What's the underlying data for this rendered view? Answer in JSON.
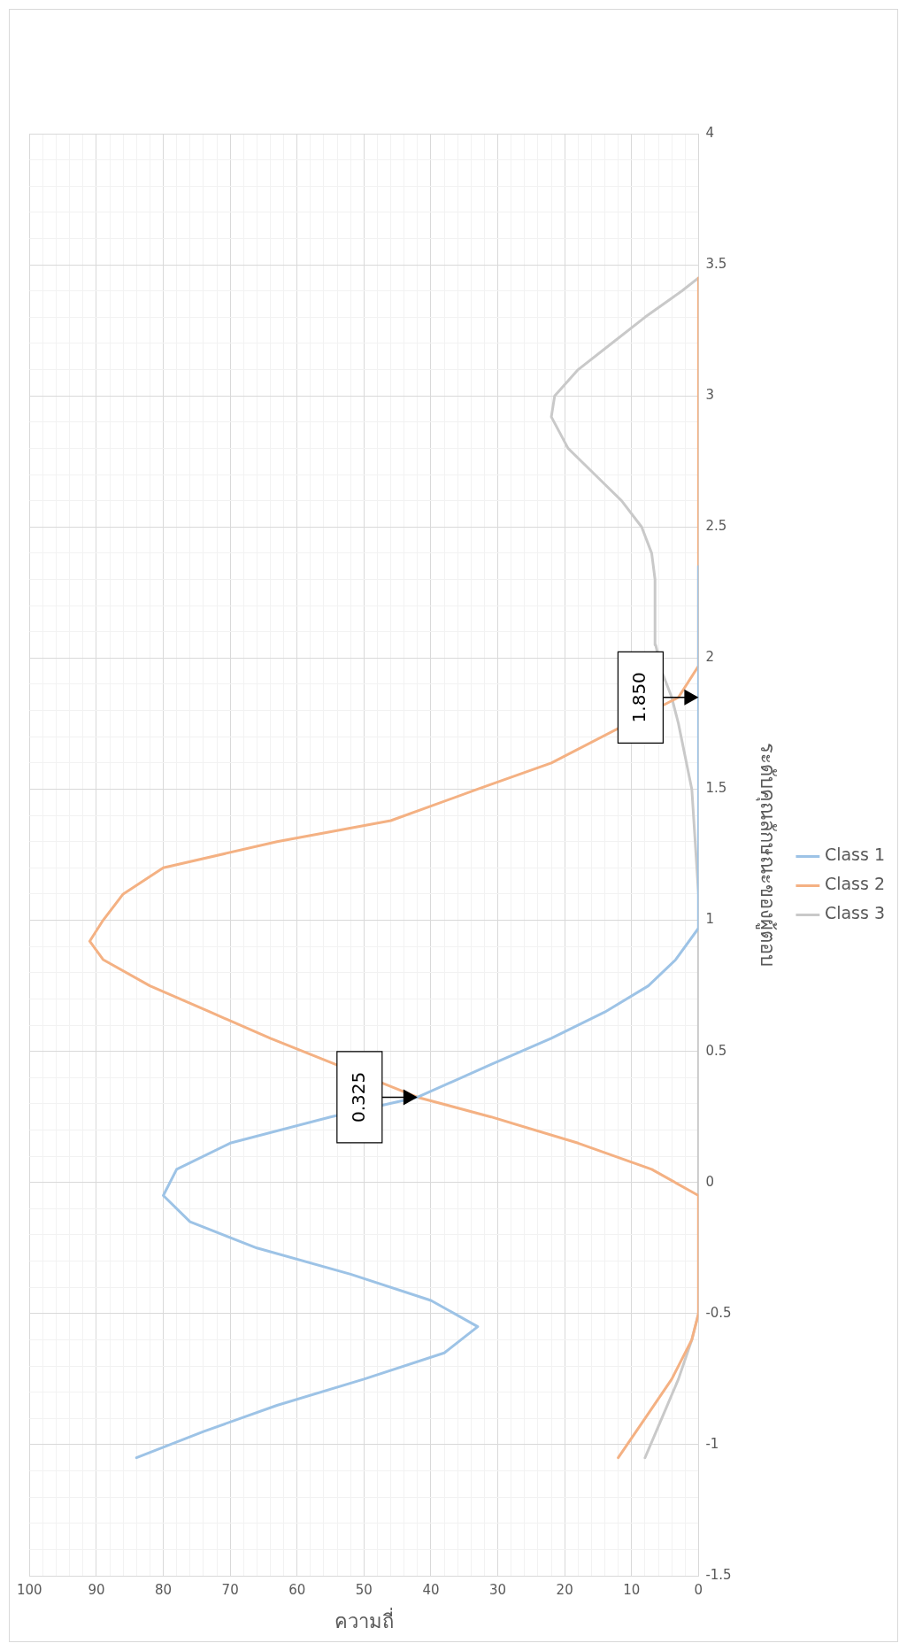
{
  "chart_data": {
    "type": "line",
    "xlabel": "ความถี่",
    "ylabel": "ระดับคุณลักษณะของผู้ตอบ",
    "xlim": [
      100,
      0
    ],
    "ylim": [
      -1.5,
      4
    ],
    "grid": true,
    "legend": "right",
    "marker": "none",
    "line_style": "solid",
    "yticks": [
      -1.5,
      {
        "value": -1.4,
        "label": null
      },
      {
        "value": -1.3,
        "label": null
      },
      {
        "value": -1.2,
        "label": null
      },
      {
        "value": -1.1,
        "label": null
      },
      -1,
      {
        "value": -0.9,
        "label": null
      },
      {
        "value": -0.8,
        "label": null
      },
      {
        "value": -0.7,
        "label": null
      },
      {
        "value": -0.6,
        "label": null
      },
      -0.5,
      {
        "value": -0.4,
        "label": null
      },
      {
        "value": -0.3,
        "label": null
      },
      {
        "value": -0.2,
        "label": null
      },
      {
        "value": -0.1,
        "label": null
      },
      0,
      {
        "value": 0.1,
        "label": null
      },
      {
        "value": 0.2,
        "label": null
      },
      {
        "value": 0.3,
        "label": null
      },
      {
        "value": 0.4,
        "label": null
      },
      0.5,
      {
        "value": 0.6,
        "label": null
      },
      {
        "value": 0.7,
        "label": null
      },
      {
        "value": 0.8,
        "label": null
      },
      {
        "value": 0.9,
        "label": null
      },
      1,
      {
        "value": 1.1,
        "label": null
      },
      {
        "value": 1.2,
        "label": null
      },
      {
        "value": 1.3,
        "label": null
      },
      {
        "value": 1.4,
        "label": null
      },
      1.5,
      {
        "value": 1.6,
        "label": null
      },
      {
        "value": 1.7,
        "label": null
      },
      {
        "value": 1.8,
        "label": null
      },
      {
        "value": 1.9,
        "label": null
      },
      2,
      {
        "value": 2.1,
        "label": null
      },
      {
        "value": 2.2,
        "label": null
      },
      {
        "value": 2.3,
        "label": null
      },
      {
        "value": 2.4,
        "label": null
      },
      2.5,
      {
        "value": 2.6,
        "label": null
      },
      {
        "value": 2.7,
        "label": null
      },
      {
        "value": 2.8,
        "label": null
      },
      {
        "value": 2.9,
        "label": null
      },
      3,
      {
        "value": 3.1,
        "label": null
      },
      {
        "value": 3.2,
        "label": null
      },
      {
        "value": 3.3,
        "label": null
      },
      {
        "value": 3.4,
        "label": null
      },
      3.5,
      {
        "value": 3.6,
        "label": null
      },
      {
        "value": 3.7,
        "label": null
      },
      {
        "value": 3.8,
        "label": null
      },
      {
        "value": 3.9,
        "label": null
      },
      4
    ],
    "xticks": [
      100,
      {
        "value": 98,
        "label": null
      },
      {
        "value": 96,
        "label": null
      },
      {
        "value": 94,
        "label": null
      },
      {
        "value": 92,
        "label": null
      },
      90,
      {
        "value": 88,
        "label": null
      },
      {
        "value": 86,
        "label": null
      },
      {
        "value": 84,
        "label": null
      },
      {
        "value": 82,
        "label": null
      },
      80,
      {
        "value": 78,
        "label": null
      },
      {
        "value": 76,
        "label": null
      },
      {
        "value": 74,
        "label": null
      },
      {
        "value": 72,
        "label": null
      },
      70,
      {
        "value": 68,
        "label": null
      },
      {
        "value": 66,
        "label": null
      },
      {
        "value": 64,
        "label": null
      },
      {
        "value": 62,
        "label": null
      },
      60,
      {
        "value": 58,
        "label": null
      },
      {
        "value": 56,
        "label": null
      },
      {
        "value": 54,
        "label": null
      },
      {
        "value": 52,
        "label": null
      },
      50,
      {
        "value": 48,
        "label": null
      },
      {
        "value": 46,
        "label": null
      },
      {
        "value": 44,
        "label": null
      },
      {
        "value": 42,
        "label": null
      },
      40,
      {
        "value": 38,
        "label": null
      },
      {
        "value": 36,
        "label": null
      },
      {
        "value": 34,
        "label": null
      },
      {
        "value": 32,
        "label": null
      },
      30,
      {
        "value": 28,
        "label": null
      },
      {
        "value": 26,
        "label": null
      },
      {
        "value": 24,
        "label": null
      },
      {
        "value": 22,
        "label": null
      },
      20,
      {
        "value": 18,
        "label": null
      },
      {
        "value": 16,
        "label": null
      },
      {
        "value": 14,
        "label": null
      },
      {
        "value": 12,
        "label": null
      },
      10,
      {
        "value": 8,
        "label": null
      },
      {
        "value": 6,
        "label": null
      },
      {
        "value": 4,
        "label": null
      },
      {
        "value": 2,
        "label": null
      },
      0
    ],
    "series": [
      {
        "name": "Class 1",
        "color": "#9dc3e6",
        "x": [
          84,
          74,
          63,
          50,
          38,
          33,
          40,
          52,
          66,
          76,
          80,
          78,
          70,
          55,
          42,
          31,
          22,
          14,
          7.5,
          3.4,
          0,
          0
        ],
        "values": [
          -1.05,
          -0.95,
          -0.85,
          -0.75,
          -0.65,
          -0.55,
          -0.45,
          -0.35,
          -0.25,
          -0.15,
          -0.05,
          0.05,
          0.15,
          0.25,
          0.325,
          0.45,
          0.55,
          0.65,
          0.75,
          0.85,
          0.97,
          2.35
        ]
      },
      {
        "name": "Class 2",
        "color": "#f4b183",
        "x": [
          12,
          8,
          4,
          1,
          0,
          0,
          7,
          18,
          31,
          42,
          64,
          73,
          82,
          89,
          91,
          89,
          86,
          80,
          63,
          46,
          33,
          22,
          3,
          0,
          0
        ],
        "values": [
          -1.05,
          -0.9,
          -0.75,
          -0.6,
          -0.5,
          -0.05,
          0.05,
          0.15,
          0.25,
          0.325,
          0.55,
          0.65,
          0.75,
          0.85,
          0.92,
          1.0,
          1.1,
          1.2,
          1.3,
          1.38,
          1.5,
          1.6,
          1.85,
          1.97,
          3.45
        ]
      },
      {
        "name": "Class 3",
        "color": "#c9c9c9",
        "x": [
          8,
          5.5,
          3,
          1,
          0,
          0,
          1,
          3,
          4,
          5.5,
          6.4,
          6.5,
          7,
          8.5,
          11.5,
          15.5,
          19.5,
          22,
          21.5,
          18,
          13,
          8,
          2.5,
          0
        ],
        "values": [
          -1.05,
          -0.9,
          -0.75,
          -0.6,
          -0.5,
          1.1,
          1.5,
          1.75,
          1.85,
          1.95,
          2.05,
          2.3,
          2.4,
          2.5,
          2.6,
          2.7,
          2.8,
          2.92,
          3.0,
          3.1,
          3.2,
          3.3,
          3.4,
          3.45
        ]
      }
    ],
    "annotations": [
      {
        "text": "0.325",
        "x": 42,
        "y": 0.325
      },
      {
        "text": "1.850",
        "x": 0,
        "y": 1.85
      }
    ]
  }
}
